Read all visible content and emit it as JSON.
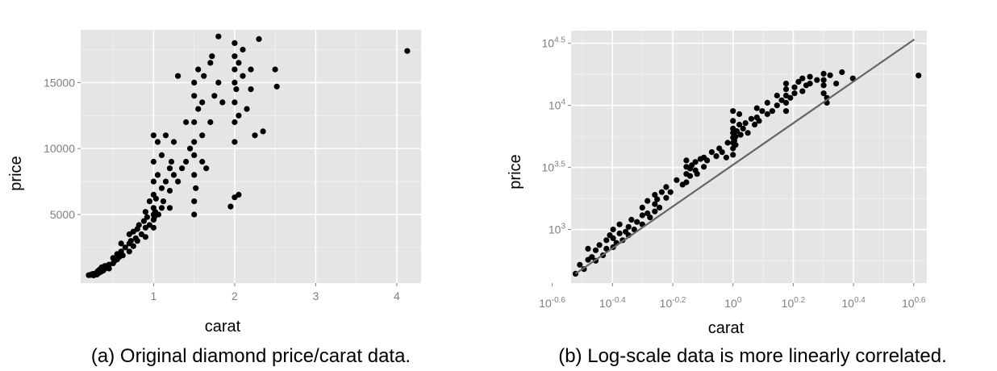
{
  "figure": {
    "captions": {
      "a": "(a) Original diamond price/carat data.",
      "b": "(b) Log-scale data is more linearly correlated."
    }
  },
  "chart_data": [
    {
      "type": "scatter",
      "title": "",
      "xlabel": "carat",
      "ylabel": "price",
      "xlim": [
        0.1,
        4.3
      ],
      "ylim": [
        -200,
        19000
      ],
      "xticks": [
        1,
        2,
        3,
        4
      ],
      "xtick_labels": [
        "1",
        "2",
        "3",
        "4"
      ],
      "yticks": [
        5000,
        10000,
        15000
      ],
      "ytick_labels": [
        "5000",
        "10000",
        "15000"
      ],
      "grid": true,
      "marker_color": "#000000",
      "background": "#e5e5e5",
      "points": [
        [
          0.2,
          400
        ],
        [
          0.22,
          420
        ],
        [
          0.23,
          450
        ],
        [
          0.25,
          500
        ],
        [
          0.26,
          380
        ],
        [
          0.28,
          520
        ],
        [
          0.3,
          450
        ],
        [
          0.3,
          600
        ],
        [
          0.31,
          700
        ],
        [
          0.32,
          550
        ],
        [
          0.33,
          800
        ],
        [
          0.35,
          650
        ],
        [
          0.35,
          900
        ],
        [
          0.36,
          1000
        ],
        [
          0.38,
          750
        ],
        [
          0.4,
          900
        ],
        [
          0.4,
          1100
        ],
        [
          0.42,
          1000
        ],
        [
          0.45,
          1200
        ],
        [
          0.45,
          900
        ],
        [
          0.5,
          1300
        ],
        [
          0.5,
          1700
        ],
        [
          0.52,
          1500
        ],
        [
          0.55,
          1600
        ],
        [
          0.55,
          2000
        ],
        [
          0.58,
          1800
        ],
        [
          0.6,
          2200
        ],
        [
          0.6,
          2800
        ],
        [
          0.62,
          1900
        ],
        [
          0.65,
          2500
        ],
        [
          0.7,
          2200
        ],
        [
          0.7,
          2800
        ],
        [
          0.7,
          3500
        ],
        [
          0.72,
          3000
        ],
        [
          0.75,
          2600
        ],
        [
          0.75,
          3700
        ],
        [
          0.78,
          3200
        ],
        [
          0.8,
          3000
        ],
        [
          0.8,
          3900
        ],
        [
          0.82,
          4200
        ],
        [
          0.85,
          3500
        ],
        [
          0.88,
          4500
        ],
        [
          0.9,
          3300
        ],
        [
          0.9,
          4000
        ],
        [
          0.9,
          5200
        ],
        [
          0.92,
          4800
        ],
        [
          0.95,
          4200
        ],
        [
          0.95,
          6000
        ],
        [
          1.0,
          4000
        ],
        [
          1.0,
          4600
        ],
        [
          1.0,
          5000
        ],
        [
          1.0,
          5500
        ],
        [
          1.0,
          6500
        ],
        [
          1.0,
          7500
        ],
        [
          1.0,
          9000
        ],
        [
          1.0,
          11000
        ],
        [
          1.01,
          4800
        ],
        [
          1.02,
          5200
        ],
        [
          1.03,
          6200
        ],
        [
          1.05,
          8000
        ],
        [
          1.05,
          10500
        ],
        [
          1.06,
          5000
        ],
        [
          1.1,
          5500
        ],
        [
          1.1,
          7000
        ],
        [
          1.1,
          9500
        ],
        [
          1.12,
          6000
        ],
        [
          1.15,
          7500
        ],
        [
          1.15,
          11000
        ],
        [
          1.2,
          6800
        ],
        [
          1.2,
          8500
        ],
        [
          1.2,
          5500
        ],
        [
          1.22,
          9000
        ],
        [
          1.25,
          8000
        ],
        [
          1.25,
          10500
        ],
        [
          1.3,
          7500
        ],
        [
          1.3,
          15500
        ],
        [
          1.35,
          8500
        ],
        [
          1.4,
          9000
        ],
        [
          1.4,
          12000
        ],
        [
          1.45,
          10000
        ],
        [
          1.5,
          5000
        ],
        [
          1.5,
          6000
        ],
        [
          1.5,
          8000
        ],
        [
          1.5,
          9500
        ],
        [
          1.5,
          10500
        ],
        [
          1.5,
          12000
        ],
        [
          1.5,
          14000
        ],
        [
          1.5,
          15000
        ],
        [
          1.52,
          7000
        ],
        [
          1.55,
          13000
        ],
        [
          1.55,
          16000
        ],
        [
          1.6,
          9000
        ],
        [
          1.6,
          11000
        ],
        [
          1.6,
          13500
        ],
        [
          1.62,
          15500
        ],
        [
          1.65,
          8500
        ],
        [
          1.7,
          12000
        ],
        [
          1.7,
          16500
        ],
        [
          1.72,
          17000
        ],
        [
          1.75,
          14000
        ],
        [
          1.8,
          15000
        ],
        [
          1.8,
          18500
        ],
        [
          1.85,
          13500
        ],
        [
          1.95,
          5600
        ],
        [
          2.0,
          6300
        ],
        [
          2.0,
          10500
        ],
        [
          2.0,
          12000
        ],
        [
          2.0,
          13500
        ],
        [
          2.0,
          15000
        ],
        [
          2.0,
          16000
        ],
        [
          2.0,
          17000
        ],
        [
          2.0,
          18000
        ],
        [
          2.02,
          14500
        ],
        [
          2.05,
          12500
        ],
        [
          2.05,
          16500
        ],
        [
          2.05,
          6500
        ],
        [
          2.1,
          15500
        ],
        [
          2.1,
          17500
        ],
        [
          2.15,
          13000
        ],
        [
          2.2,
          14500
        ],
        [
          2.2,
          16000
        ],
        [
          2.25,
          11000
        ],
        [
          2.3,
          18300
        ],
        [
          2.35,
          11300
        ],
        [
          2.5,
          16000
        ],
        [
          2.52,
          14700
        ],
        [
          4.13,
          17400
        ]
      ]
    },
    {
      "type": "scatter",
      "title": "",
      "xlabel": "carat",
      "ylabel": "price",
      "xscale": "log10",
      "yscale": "log10",
      "xlim": [
        0.29,
        4.4
      ],
      "ylim": [
        370,
        40000
      ],
      "xticks": [
        0.251,
        0.398,
        0.631,
        1,
        1.585,
        2.512,
        3.981
      ],
      "xtick_labels": [
        [
          "10",
          "-0.6"
        ],
        [
          "10",
          "-0.4"
        ],
        [
          "10",
          "-0.2"
        ],
        [
          "10",
          "0"
        ],
        [
          "10",
          "0.2"
        ],
        [
          "10",
          "0.4"
        ],
        [
          "10",
          "0.6"
        ]
      ],
      "yticks": [
        1000,
        3162,
        10000,
        31623
      ],
      "ytick_labels": [
        [
          "10",
          "3"
        ],
        [
          "10",
          "3.5"
        ],
        [
          "10",
          "4"
        ],
        [
          "10",
          "4.5"
        ]
      ],
      "grid": true,
      "marker_color": "#000000",
      "background": "#e5e5e5",
      "fit_line": {
        "color": "#666666",
        "x": [
          0.3,
          4.0
        ],
        "y": [
          440,
          34000
        ]
      },
      "points": [
        [
          0.3,
          440
        ],
        [
          0.31,
          520
        ],
        [
          0.32,
          480
        ],
        [
          0.33,
          570
        ],
        [
          0.33,
          700
        ],
        [
          0.34,
          600
        ],
        [
          0.35,
          560
        ],
        [
          0.35,
          680
        ],
        [
          0.36,
          750
        ],
        [
          0.37,
          620
        ],
        [
          0.38,
          700
        ],
        [
          0.38,
          820
        ],
        [
          0.39,
          900
        ],
        [
          0.4,
          720
        ],
        [
          0.4,
          850
        ],
        [
          0.4,
          1000
        ],
        [
          0.41,
          780
        ],
        [
          0.42,
          930
        ],
        [
          0.42,
          1100
        ],
        [
          0.43,
          820
        ],
        [
          0.44,
          960
        ],
        [
          0.45,
          1050
        ],
        [
          0.45,
          900
        ],
        [
          0.46,
          1200
        ],
        [
          0.47,
          1000
        ],
        [
          0.48,
          1150
        ],
        [
          0.5,
          1300
        ],
        [
          0.5,
          1100
        ],
        [
          0.5,
          1500
        ],
        [
          0.52,
          1350
        ],
        [
          0.52,
          1700
        ],
        [
          0.53,
          1250
        ],
        [
          0.55,
          1600
        ],
        [
          0.55,
          1400
        ],
        [
          0.55,
          1900
        ],
        [
          0.56,
          1750
        ],
        [
          0.57,
          1500
        ],
        [
          0.58,
          2000
        ],
        [
          0.6,
          1800
        ],
        [
          0.6,
          2200
        ],
        [
          0.62,
          2000
        ],
        [
          0.65,
          2500
        ],
        [
          0.68,
          2300
        ],
        [
          0.7,
          2400
        ],
        [
          0.7,
          2800
        ],
        [
          0.7,
          3200
        ],
        [
          0.7,
          3600
        ],
        [
          0.72,
          2700
        ],
        [
          0.72,
          3100
        ],
        [
          0.73,
          3300
        ],
        [
          0.75,
          3000
        ],
        [
          0.75,
          3500
        ],
        [
          0.76,
          2800
        ],
        [
          0.78,
          3700
        ],
        [
          0.8,
          3200
        ],
        [
          0.8,
          3800
        ],
        [
          0.82,
          3600
        ],
        [
          0.85,
          4200
        ],
        [
          0.88,
          3900
        ],
        [
          0.9,
          4500
        ],
        [
          0.92,
          4200
        ],
        [
          0.95,
          3800
        ],
        [
          0.96,
          5000
        ],
        [
          1.0,
          4000
        ],
        [
          1.0,
          4500
        ],
        [
          1.0,
          5000
        ],
        [
          1.0,
          5500
        ],
        [
          1.0,
          6000
        ],
        [
          1.0,
          6500
        ],
        [
          1.0,
          7500
        ],
        [
          1.0,
          9000
        ],
        [
          1.01,
          5200
        ],
        [
          1.02,
          4800
        ],
        [
          1.02,
          5600
        ],
        [
          1.03,
          6200
        ],
        [
          1.05,
          7000
        ],
        [
          1.05,
          8500
        ],
        [
          1.06,
          5800
        ],
        [
          1.08,
          6500
        ],
        [
          1.1,
          7200
        ],
        [
          1.12,
          6000
        ],
        [
          1.15,
          7800
        ],
        [
          1.18,
          7000
        ],
        [
          1.2,
          8000
        ],
        [
          1.2,
          9500
        ],
        [
          1.22,
          7500
        ],
        [
          1.25,
          9000
        ],
        [
          1.3,
          8500
        ],
        [
          1.3,
          10500
        ],
        [
          1.35,
          9000
        ],
        [
          1.4,
          10000
        ],
        [
          1.4,
          12000
        ],
        [
          1.45,
          11000
        ],
        [
          1.5,
          9000
        ],
        [
          1.5,
          10500
        ],
        [
          1.5,
          12000
        ],
        [
          1.5,
          13500
        ],
        [
          1.5,
          15000
        ],
        [
          1.55,
          11500
        ],
        [
          1.6,
          12500
        ],
        [
          1.6,
          14000
        ],
        [
          1.65,
          15500
        ],
        [
          1.7,
          13000
        ],
        [
          1.7,
          16500
        ],
        [
          1.75,
          14500
        ],
        [
          1.8,
          15000
        ],
        [
          1.8,
          17000
        ],
        [
          1.9,
          16000
        ],
        [
          2.0,
          12500
        ],
        [
          2.0,
          14500
        ],
        [
          2.0,
          16000
        ],
        [
          2.0,
          18000
        ],
        [
          2.05,
          10500
        ],
        [
          2.05,
          11500
        ],
        [
          2.1,
          17500
        ],
        [
          2.2,
          15000
        ],
        [
          2.3,
          18500
        ],
        [
          2.5,
          16500
        ],
        [
          4.13,
          17400
        ]
      ]
    }
  ]
}
